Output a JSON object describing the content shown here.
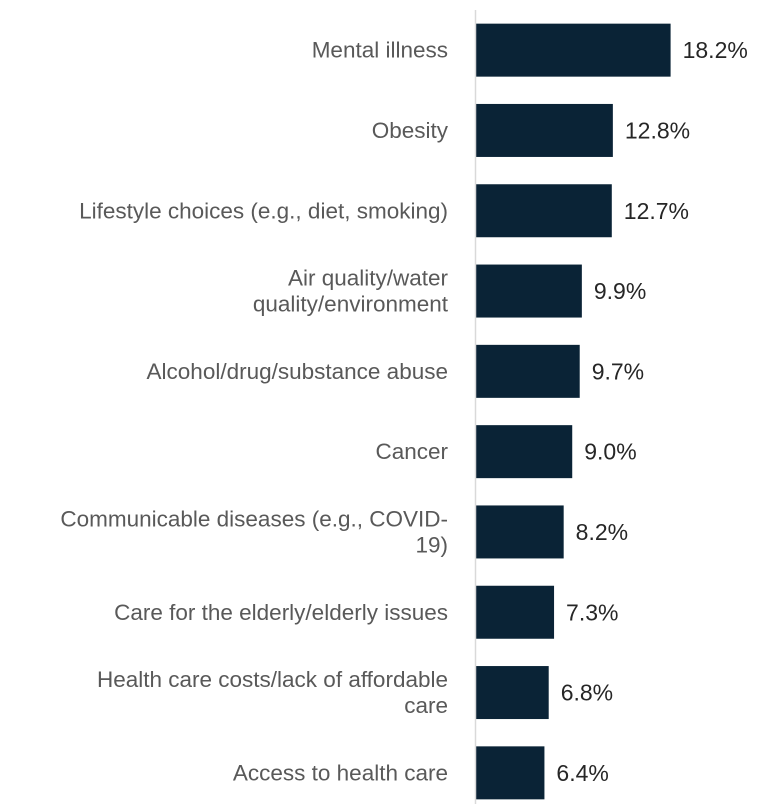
{
  "chart_data": {
    "type": "bar",
    "orientation": "horizontal",
    "categories": [
      [
        "Mental illness"
      ],
      [
        "Obesity"
      ],
      [
        "Lifestyle choices (e.g., diet, smoking)"
      ],
      [
        "Air quality/water",
        "quality/environment"
      ],
      [
        "Alcohol/drug/substance abuse"
      ],
      [
        "Cancer"
      ],
      [
        "Communicable diseases (e.g., COVID-",
        "19)"
      ],
      [
        "Care for the elderly/elderly issues"
      ],
      [
        "Health care costs/lack of affordable",
        "care"
      ],
      [
        "Access to health care"
      ]
    ],
    "values": [
      18.2,
      12.8,
      12.7,
      9.9,
      9.7,
      9.0,
      8.2,
      7.3,
      6.8,
      6.4
    ],
    "value_labels": [
      "18.2%",
      "12.8%",
      "12.7%",
      "9.9%",
      "9.7%",
      "9.0%",
      "8.2%",
      "7.3%",
      "6.8%",
      "6.4%"
    ],
    "xlim": [
      0,
      26
    ],
    "bar_color": "#0a2336",
    "axis_color": "#d9d9d9",
    "grid": false,
    "legend": "none"
  }
}
